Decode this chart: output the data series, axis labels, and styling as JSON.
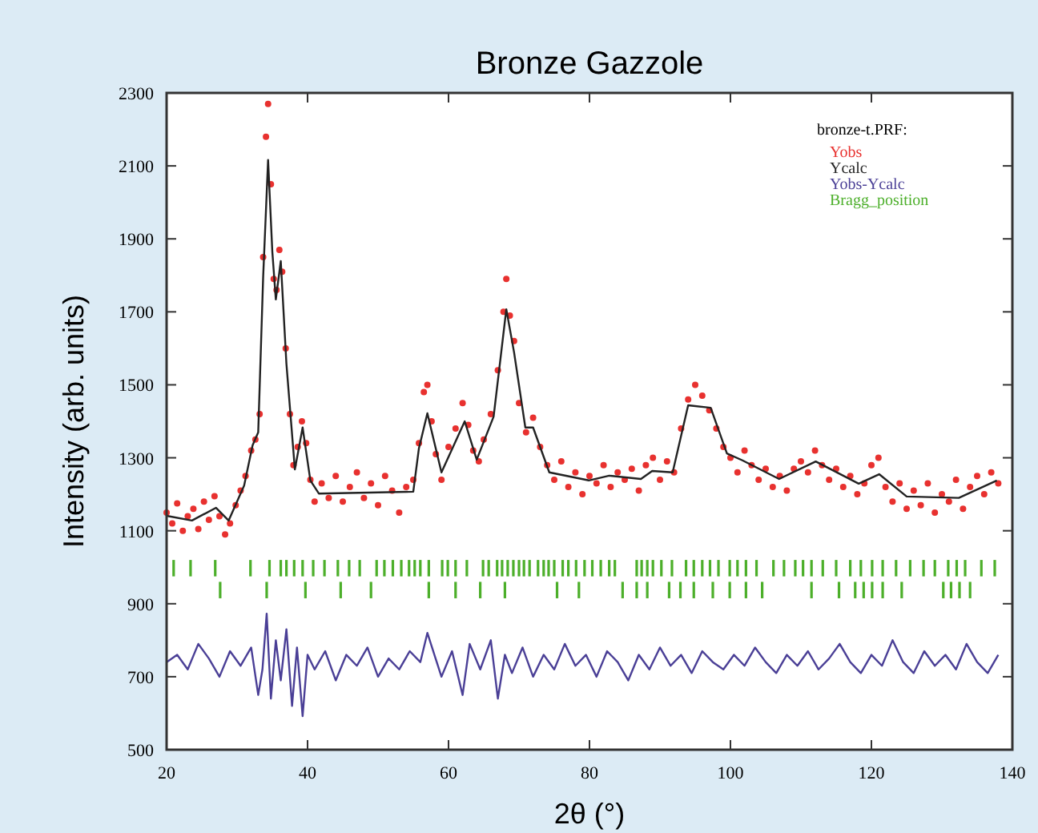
{
  "chart_data": {
    "type": "line",
    "title": "Bronze Gazzole",
    "xlabel": "2θ (°)",
    "ylabel": "Intensity (arb. units)",
    "legend_title": "bronze-t.PRF:",
    "legend": "top right",
    "xlim": [
      20,
      140
    ],
    "xticks": [
      20,
      40,
      60,
      80,
      100,
      120,
      140
    ],
    "ylim": [
      500,
      2300
    ],
    "yticks": [
      500,
      700,
      900,
      1100,
      1300,
      1500,
      1700,
      1900,
      2100,
      2300
    ],
    "series": [
      {
        "name": "Yobs",
        "type": "scatter",
        "marker": "circle",
        "color": "#e8312f",
        "x": [
          20,
          20.8,
          21.5,
          22.3,
          23,
          23.8,
          24.5,
          25.3,
          26,
          26.8,
          27.5,
          28.3,
          29,
          29.8,
          30.5,
          31.2,
          32,
          32.6,
          33.2,
          33.7,
          34.1,
          34.4,
          34.8,
          35.2,
          35.6,
          36,
          36.4,
          36.9,
          37.5,
          38,
          38.6,
          39.2,
          39.8,
          40.4,
          41,
          42,
          43,
          44,
          45,
          46,
          47,
          48,
          49,
          50,
          51,
          52,
          53,
          54,
          55,
          55.8,
          56.5,
          57,
          57.6,
          58.2,
          59,
          60,
          61,
          62,
          62.8,
          63.5,
          64.3,
          65,
          66,
          67,
          67.8,
          68.2,
          68.7,
          69.3,
          70,
          71,
          72,
          73,
          74,
          75,
          76,
          77,
          78,
          79,
          80,
          81,
          82,
          83,
          84,
          85,
          86,
          87,
          88,
          89,
          90,
          91,
          92,
          93,
          94,
          95,
          96,
          97,
          98,
          99,
          100,
          101,
          102,
          103,
          104,
          105,
          106,
          107,
          108,
          109,
          110,
          111,
          112,
          113,
          114,
          115,
          116,
          117,
          118,
          119,
          120,
          121,
          122,
          123,
          124,
          125,
          126,
          127,
          128,
          129,
          130,
          131,
          132,
          133,
          134,
          135,
          136,
          137,
          138
        ],
        "values": [
          1150,
          1120,
          1175,
          1100,
          1140,
          1160,
          1105,
          1180,
          1130,
          1195,
          1140,
          1090,
          1120,
          1170,
          1210,
          1250,
          1320,
          1350,
          1420,
          1850,
          2180,
          2270,
          2050,
          1790,
          1760,
          1870,
          1810,
          1600,
          1420,
          1280,
          1330,
          1400,
          1340,
          1240,
          1180,
          1230,
          1190,
          1250,
          1180,
          1220,
          1260,
          1190,
          1230,
          1170,
          1250,
          1210,
          1150,
          1220,
          1240,
          1340,
          1480,
          1500,
          1400,
          1310,
          1240,
          1330,
          1380,
          1450,
          1390,
          1320,
          1290,
          1350,
          1420,
          1540,
          1700,
          1790,
          1690,
          1620,
          1450,
          1370,
          1410,
          1330,
          1280,
          1240,
          1290,
          1220,
          1260,
          1200,
          1250,
          1230,
          1280,
          1220,
          1260,
          1240,
          1270,
          1210,
          1280,
          1300,
          1240,
          1290,
          1260,
          1380,
          1460,
          1500,
          1470,
          1430,
          1380,
          1330,
          1300,
          1260,
          1320,
          1280,
          1240,
          1270,
          1220,
          1250,
          1210,
          1270,
          1290,
          1260,
          1320,
          1280,
          1240,
          1270,
          1220,
          1250,
          1200,
          1230,
          1280,
          1300,
          1220,
          1180,
          1230,
          1160,
          1210,
          1170,
          1230,
          1150,
          1200,
          1180,
          1240,
          1160,
          1220,
          1250,
          1200,
          1260,
          1230
        ]
      },
      {
        "name": "Ycalc",
        "line_style": "solid",
        "color": "#222222",
        "x": [
          20,
          23.6,
          27,
          28.8,
          31,
          32.2,
          33,
          33.7,
          34.4,
          35,
          35.5,
          36.2,
          37,
          38.2,
          39.3,
          40.4,
          41.6,
          55,
          55.8,
          57,
          59,
          62.3,
          64,
          66.4,
          68.2,
          69.3,
          70.9,
          72,
          74.3,
          79.9,
          82.8,
          87.3,
          88.9,
          91.8,
          94,
          97.2,
          99.5,
          101.7,
          106.9,
          112.1,
          118.2,
          121.1,
          125,
          132.4,
          137.8
        ],
        "values": [
          1141,
          1128,
          1163,
          1128,
          1224,
          1334,
          1370,
          1795,
          2116,
          1865,
          1734,
          1839,
          1558,
          1268,
          1383,
          1238,
          1202,
          1207,
          1326,
          1422,
          1260,
          1400,
          1295,
          1413,
          1707,
          1589,
          1383,
          1383,
          1260,
          1238,
          1251,
          1242,
          1264,
          1260,
          1444,
          1437,
          1312,
          1293,
          1242,
          1290,
          1229,
          1255,
          1194,
          1190,
          1238
        ]
      },
      {
        "name": "Yobs-Ycalc",
        "line_style": "solid",
        "color": "#4a3f96",
        "x": [
          20,
          21.5,
          23,
          24.5,
          26,
          27.5,
          29,
          30.5,
          32,
          33,
          33.6,
          34.2,
          34.8,
          35.5,
          36.2,
          37,
          37.8,
          38.5,
          39.3,
          40,
          41,
          42.5,
          44,
          45.5,
          47,
          48.5,
          50,
          51.5,
          53,
          54.5,
          56,
          57,
          58,
          59,
          60.5,
          62,
          63,
          64.5,
          66,
          67,
          68,
          69,
          70.5,
          72,
          73.5,
          75,
          76.5,
          78,
          79.5,
          81,
          82.5,
          84,
          85.5,
          87,
          88.5,
          90,
          91.5,
          93,
          94.5,
          96,
          97.5,
          99,
          100.5,
          102,
          103.5,
          105,
          106.5,
          108,
          109.5,
          111,
          112.5,
          114,
          115.5,
          117,
          118.5,
          120,
          121.5,
          123,
          124.5,
          126,
          127.5,
          129,
          130.5,
          132,
          133.5,
          135,
          136.5,
          138
        ],
        "values": [
          740,
          760,
          720,
          790,
          750,
          700,
          770,
          730,
          780,
          650,
          720,
          873,
          640,
          800,
          690,
          830,
          620,
          780,
          592,
          760,
          720,
          770,
          690,
          760,
          730,
          780,
          700,
          750,
          720,
          770,
          740,
          820,
          760,
          700,
          770,
          650,
          790,
          720,
          800,
          640,
          760,
          710,
          780,
          700,
          760,
          720,
          790,
          730,
          760,
          700,
          770,
          740,
          690,
          760,
          720,
          780,
          730,
          760,
          710,
          770,
          740,
          720,
          760,
          730,
          780,
          740,
          710,
          760,
          730,
          770,
          720,
          750,
          790,
          740,
          710,
          760,
          730,
          800,
          740,
          710,
          770,
          730,
          760,
          720,
          790,
          740,
          710,
          760
        ]
      },
      {
        "name": "Bragg_position",
        "type": "bar",
        "color": "#4caf2a",
        "x": [
          21.0,
          23.4,
          26.9,
          31.9,
          34.6,
          36.2,
          37.0,
          38.1,
          39.3,
          40.8,
          42.4,
          44.3,
          45.9,
          47.4,
          49.8,
          50.9,
          52.1,
          53.3,
          54.4,
          55.2,
          56.0,
          57.2,
          59.1,
          59.9,
          61.0,
          62.6,
          64.9,
          65.7,
          66.9,
          67.6,
          68.4,
          69.2,
          70.0,
          70.7,
          71.5,
          72.7,
          73.5,
          74.2,
          75.0,
          76.2,
          77.0,
          78.1,
          79.3,
          80.4,
          81.6,
          82.8,
          83.6,
          86.7,
          87.4,
          88.2,
          89.0,
          90.2,
          91.7,
          93.7,
          94.8,
          96.0,
          97.1,
          98.3,
          99.9,
          101.0,
          102.2,
          103.7,
          106.1,
          107.6,
          109.2,
          110.3,
          111.5,
          113.1,
          115.0,
          117.0,
          118.5,
          120.1,
          121.6,
          123.5,
          125.5,
          127.4,
          129.0,
          130.9,
          132.1,
          133.3,
          135.6,
          137.5
        ],
        "base": [
          975,
          975,
          975,
          975,
          975,
          975,
          975,
          975,
          975,
          975,
          975,
          975,
          975,
          975,
          975,
          975,
          975,
          975,
          975,
          975,
          975,
          975,
          975,
          975,
          975,
          975,
          975,
          975,
          975,
          975,
          975,
          975,
          975,
          975,
          975,
          975,
          975,
          975,
          975,
          975,
          975,
          975,
          975,
          975,
          975,
          975,
          975,
          975,
          975,
          975,
          975,
          975,
          975,
          975,
          975,
          975,
          975,
          975,
          975,
          975,
          975,
          975,
          975,
          975,
          975,
          975,
          975,
          975,
          975,
          975,
          975,
          975,
          975,
          975,
          975,
          975,
          975,
          975,
          975,
          975,
          975,
          975
        ],
        "values": [
          45,
          45,
          45,
          45,
          45,
          45,
          45,
          45,
          45,
          45,
          45,
          45,
          45,
          45,
          45,
          45,
          45,
          45,
          45,
          45,
          45,
          45,
          45,
          45,
          45,
          45,
          45,
          45,
          45,
          45,
          45,
          45,
          45,
          45,
          45,
          45,
          45,
          45,
          45,
          45,
          45,
          45,
          45,
          45,
          45,
          45,
          45,
          45,
          45,
          45,
          45,
          45,
          45,
          45,
          45,
          45,
          45,
          45,
          45,
          45,
          45,
          45,
          45,
          45,
          45,
          45,
          45,
          45,
          45,
          45,
          45,
          45,
          45,
          45,
          45,
          45,
          45,
          45,
          45,
          45,
          45,
          45
        ]
      },
      {
        "type": "bar",
        "color": "#4caf2a",
        "x": [
          27.6,
          34.2,
          39.7,
          44.7,
          49.0,
          57.2,
          61.0,
          64.5,
          68.0,
          75.4,
          78.5,
          84.7,
          86.7,
          88.2,
          91.3,
          92.9,
          94.8,
          97.5,
          99.9,
          102.2,
          104.5,
          111.5,
          115.4,
          117.7,
          118.9,
          120.1,
          121.6,
          124.3,
          130.2,
          131.3,
          132.5,
          134.0
        ],
        "base": [
          915,
          915,
          915,
          915,
          915,
          915,
          915,
          915,
          915,
          915,
          915,
          915,
          915,
          915,
          915,
          915,
          915,
          915,
          915,
          915,
          915,
          915,
          915,
          915,
          915,
          915,
          915,
          915,
          915,
          915,
          915,
          915
        ],
        "values": [
          45,
          45,
          45,
          45,
          45,
          45,
          45,
          45,
          45,
          45,
          45,
          45,
          45,
          45,
          45,
          45,
          45,
          45,
          45,
          45,
          45,
          45,
          45,
          45,
          45,
          45,
          45,
          45,
          45,
          45,
          45,
          45
        ]
      }
    ]
  }
}
